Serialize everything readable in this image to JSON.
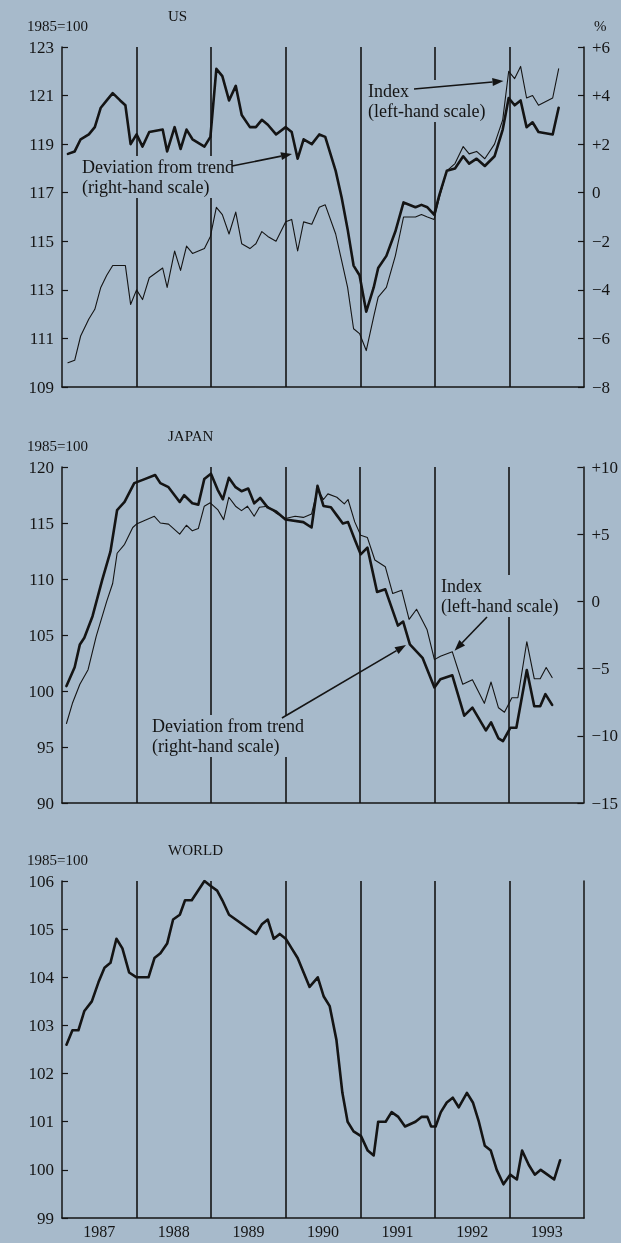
{
  "chart_data": [
    {
      "type": "line",
      "title": "US",
      "ylabel": "1985=100",
      "y2label": "%",
      "xlim": [
        1987,
        1994
      ],
      "tick_labels": "y",
      "ylim": [
        109,
        123
      ],
      "yticks": [
        109,
        111,
        113,
        115,
        117,
        119,
        121,
        123
      ],
      "y2lim": [
        -8,
        6
      ],
      "y2ticks": [
        {
          "value": -8,
          "label": "−8"
        },
        {
          "value": -6,
          "label": "−6"
        },
        {
          "value": -4,
          "label": "−4"
        },
        {
          "value": -2,
          "label": "−2"
        },
        0,
        {
          "value": 2,
          "label": "+2"
        },
        {
          "value": 4,
          "label": "+4"
        },
        {
          "value": 6,
          "label": "+6"
        }
      ],
      "x": [
        1987.08,
        1987.17,
        1987.25,
        1987.36,
        1987.44,
        1987.52,
        1987.6,
        1987.68,
        1987.78,
        1987.85,
        1987.92,
        1988.0,
        1988.08,
        1988.17,
        1988.35,
        1988.41,
        1988.51,
        1988.59,
        1988.67,
        1988.75,
        1988.91,
        1988.99,
        1989.07,
        1989.15,
        1989.24,
        1989.33,
        1989.41,
        1989.52,
        1989.6,
        1989.68,
        1989.76,
        1989.87,
        1990.0,
        1990.08,
        1990.16,
        1990.24,
        1990.35,
        1990.45,
        1990.53,
        1990.67,
        1990.75,
        1990.83,
        1990.91,
        1990.99,
        1991.08,
        1991.18,
        1991.24,
        1991.35,
        1991.47,
        1991.58,
        1991.74,
        1991.82,
        1991.9,
        1991.99,
        1992.06,
        1992.16,
        1992.27,
        1992.38,
        1992.46,
        1992.56,
        1992.67,
        1992.8,
        1992.91,
        1992.99,
        1993.07,
        1993.15,
        1993.23,
        1993.31,
        1993.39,
        1993.58,
        1993.66
      ],
      "series": [
        {
          "color": "#141414",
          "values": [
            110.0,
            110.1,
            111.1,
            111.8,
            112.2,
            113.1,
            113.6,
            114.0,
            114.0,
            114.0,
            112.4,
            113.0,
            112.6,
            113.5,
            113.9,
            113.1,
            114.6,
            113.8,
            114.8,
            114.5,
            114.7,
            115.2,
            116.4,
            116.1,
            115.3,
            116.2,
            114.9,
            114.7,
            114.9,
            115.4,
            115.2,
            115.0,
            115.8,
            115.9,
            114.6,
            115.8,
            115.7,
            116.4,
            116.5,
            115.3,
            114.2,
            113.1,
            111.4,
            111.2,
            110.5,
            111.9,
            112.7,
            113.1,
            114.4,
            116.0,
            116.0,
            116.1,
            116.0,
            115.9,
            116.8,
            117.9,
            118.2,
            118.9,
            118.6,
            118.7,
            118.4,
            119.0,
            120.0,
            122.0,
            121.7,
            122.2,
            120.9,
            121.0,
            120.6,
            120.9,
            122.1
          ]
        },
        {
          "color": "#141414",
          "axis": "y2",
          "values": [
            1.6,
            1.7,
            2.2,
            2.4,
            2.7,
            3.5,
            3.8,
            4.1,
            3.8,
            3.6,
            2.0,
            2.4,
            1.9,
            2.5,
            2.6,
            1.7,
            2.7,
            1.8,
            2.6,
            2.2,
            1.9,
            2.3,
            5.1,
            4.8,
            3.8,
            4.4,
            3.2,
            2.7,
            2.7,
            3.0,
            2.8,
            2.4,
            2.7,
            2.5,
            1.4,
            2.2,
            2.0,
            2.4,
            2.3,
            0.9,
            -0.2,
            -1.5,
            -3.0,
            -3.4,
            -4.9,
            -3.9,
            -3.1,
            -2.6,
            -1.6,
            -0.4,
            -0.6,
            -0.5,
            -0.6,
            -0.9,
            -0.1,
            0.9,
            1.0,
            1.5,
            1.2,
            1.4,
            1.1,
            1.5,
            2.6,
            3.9,
            3.6,
            3.8,
            2.7,
            2.9,
            2.5,
            2.4,
            3.5
          ]
        }
      ],
      "ref_lines": [
        {
          "axis": "x",
          "value": 1988
        },
        {
          "axis": "x",
          "value": 1989
        },
        {
          "axis": "x",
          "value": 1990
        },
        {
          "axis": "x",
          "value": 1991
        },
        {
          "axis": "x",
          "value": 1992
        },
        {
          "axis": "x",
          "value": 1993
        }
      ],
      "annotations": [
        {
          "text": "Index\n(left-hand scale)",
          "x": 1992.92,
          "y": 121.6
        },
        "Deviation from trend\n(right-hand scale)"
      ]
    },
    {
      "type": "line",
      "title": "JAPAN",
      "ylabel": "1985=100",
      "xlim": [
        1987,
        1994
      ],
      "tick_labels": "y",
      "ylim": [
        90,
        120
      ],
      "yticks": [
        90,
        95,
        100,
        105,
        110,
        115,
        120
      ],
      "y2lim": [
        -15,
        10
      ],
      "y2ticks": [
        {
          "value": -15,
          "label": "−15"
        },
        {
          "value": -10,
          "label": "−10"
        },
        {
          "value": -5,
          "label": "−5"
        },
        0,
        {
          "value": 5,
          "label": "+5"
        },
        {
          "value": 10,
          "label": "+10"
        }
      ],
      "series": [
        {
          "color": "#141414",
          "x": [
            1987.06,
            1987.14,
            1987.24,
            1987.35,
            1987.46,
            1987.6,
            1987.68,
            1987.74,
            1987.84,
            1987.95,
            1988.0,
            1988.24,
            1988.32,
            1988.43,
            1988.58,
            1988.67,
            1988.75,
            1988.83,
            1988.91,
            1988.99,
            1989.09,
            1989.17,
            1989.24,
            1989.33,
            1989.41,
            1989.49,
            1989.58,
            1989.65,
            1989.76,
            1989.87,
            1990.0,
            1990.13,
            1990.24,
            1990.35,
            1990.43,
            1990.51,
            1990.57,
            1990.69,
            1990.79,
            1990.84,
            1990.93,
            1991.01,
            1991.1,
            1991.2,
            1991.34,
            1991.44,
            1991.56,
            1991.66,
            1991.76,
            1991.9,
            1992.0,
            1992.08,
            1992.24,
            1992.38,
            1992.51,
            1992.67,
            1992.76,
            1992.86,
            1992.94,
            1993.04,
            1993.12,
            1993.24,
            1993.34,
            1993.42,
            1993.5,
            1993.58
          ],
          "values": [
            97.1,
            98.9,
            100.6,
            101.9,
            104.9,
            108.0,
            109.6,
            112.3,
            113.1,
            114.6,
            114.9,
            115.6,
            115.0,
            114.9,
            114.0,
            114.8,
            114.3,
            114.5,
            116.5,
            116.8,
            116.2,
            115.3,
            117.3,
            116.5,
            116.1,
            116.5,
            115.6,
            116.4,
            116.5,
            115.9,
            115.4,
            115.6,
            115.5,
            115.8,
            118.0,
            117.1,
            117.6,
            117.3,
            116.7,
            117.1,
            115.1,
            113.9,
            113.7,
            111.7,
            111.1,
            108.7,
            109.0,
            106.4,
            107.3,
            105.5,
            102.8,
            103.1,
            103.5,
            100.6,
            101.0,
            98.9,
            100.8,
            98.5,
            98.1,
            99.4,
            99.4,
            104.4,
            101.1,
            101.1,
            102.1,
            101.2
          ]
        },
        {
          "color": "#141414",
          "axis": "y2",
          "x": [
            1987.06,
            1987.17,
            1987.24,
            1987.3,
            1987.41,
            1987.54,
            1987.65,
            1987.74,
            1987.84,
            1987.97,
            1988.11,
            1988.25,
            1988.32,
            1988.43,
            1988.58,
            1988.64,
            1988.75,
            1988.83,
            1988.91,
            1989.0,
            1989.09,
            1989.16,
            1989.24,
            1989.33,
            1989.41,
            1989.5,
            1989.58,
            1989.66,
            1989.76,
            1989.87,
            1990.0,
            1990.24,
            1990.35,
            1990.43,
            1990.51,
            1990.61,
            1990.69,
            1990.77,
            1990.84,
            1990.93,
            1991.01,
            1991.1,
            1991.23,
            1991.34,
            1991.51,
            1991.58,
            1991.67,
            1991.84,
            1992.0,
            1992.08,
            1992.24,
            1992.4,
            1992.51,
            1992.69,
            1992.76,
            1992.86,
            1992.92,
            1993.02,
            1993.1,
            1993.24,
            1993.34,
            1993.42,
            1993.49,
            1993.58
          ],
          "values": [
            -6.3,
            -4.9,
            -3.2,
            -2.7,
            -1.1,
            1.6,
            3.7,
            6.8,
            7.4,
            8.8,
            9.1,
            9.4,
            8.8,
            8.5,
            7.4,
            7.9,
            7.3,
            7.2,
            9.1,
            9.5,
            8.3,
            7.6,
            9.2,
            8.5,
            8.2,
            8.4,
            7.3,
            7.7,
            7.0,
            6.7,
            6.1,
            5.9,
            5.5,
            8.6,
            7.1,
            7.0,
            6.4,
            5.8,
            5.9,
            4.6,
            3.5,
            4.0,
            0.7,
            0.9,
            -1.8,
            -1.5,
            -3.2,
            -4.2,
            -6.4,
            -5.8,
            -5.5,
            -8.5,
            -7.9,
            -9.6,
            -9.0,
            -10.2,
            -10.4,
            -9.4,
            -9.4,
            -5.1,
            -7.8,
            -7.8,
            -6.9,
            -7.7
          ]
        }
      ],
      "ref_lines": [
        {
          "axis": "x",
          "value": 1988
        },
        {
          "axis": "x",
          "value": 1989
        },
        {
          "axis": "x",
          "value": 1990
        },
        {
          "axis": "x",
          "value": 1991
        },
        {
          "axis": "x",
          "value": 1992
        },
        {
          "axis": "x",
          "value": 1993
        }
      ],
      "annotations": [
        {
          "text": "Index\n(left-hand scale)",
          "x": 1992.27,
          "y": 103.6
        },
        "Deviation from trend\n(right-hand scale)"
      ]
    },
    {
      "type": "line",
      "title": "WORLD",
      "ylabel": "1985=100",
      "xlim": [
        1987,
        1994
      ],
      "xticks": [
        {
          "value": 1987.5,
          "label": "1987"
        },
        {
          "value": 1988.5,
          "label": "1988"
        },
        {
          "value": 1989.5,
          "label": "1989"
        },
        {
          "value": 1990.5,
          "label": "1990"
        },
        {
          "value": 1991.5,
          "label": "1991"
        },
        {
          "value": 1992.5,
          "label": "1992"
        },
        {
          "value": 1993.5,
          "label": "1993"
        }
      ],
      "ylim": [
        99,
        106
      ],
      "yticks": [
        99,
        100,
        101,
        102,
        103,
        104,
        105,
        106
      ],
      "x": [
        1987.06,
        1987.14,
        1987.22,
        1987.3,
        1987.4,
        1987.49,
        1987.57,
        1987.65,
        1987.73,
        1987.81,
        1987.9,
        1988.0,
        1988.16,
        1988.24,
        1988.32,
        1988.41,
        1988.49,
        1988.58,
        1988.65,
        1988.74,
        1988.91,
        1988.99,
        1989.08,
        1989.15,
        1989.24,
        1989.33,
        1989.6,
        1989.68,
        1989.76,
        1989.84,
        1989.92,
        1990.0,
        1990.08,
        1990.16,
        1990.24,
        1990.32,
        1990.43,
        1990.51,
        1990.59,
        1990.68,
        1990.76,
        1990.83,
        1990.91,
        1991.01,
        1991.1,
        1991.18,
        1991.24,
        1991.34,
        1991.42,
        1991.51,
        1991.6,
        1991.74,
        1991.82,
        1991.9,
        1991.95,
        1992.01,
        1992.08,
        1992.16,
        1992.24,
        1992.32,
        1992.43,
        1992.51,
        1992.59,
        1992.67,
        1992.75,
        1992.83,
        1992.92,
        1993.01,
        1993.1,
        1993.17,
        1993.26,
        1993.34,
        1993.42,
        1993.51,
        1993.6,
        1993.68
      ],
      "series": [
        {
          "color": "#141414",
          "values": [
            102.6,
            102.9,
            102.9,
            103.3,
            103.5,
            103.9,
            104.2,
            104.3,
            104.8,
            104.6,
            104.1,
            104.0,
            104.0,
            104.4,
            104.5,
            104.7,
            105.2,
            105.3,
            105.6,
            105.6,
            106.0,
            105.9,
            105.8,
            105.6,
            105.3,
            105.2,
            104.9,
            105.1,
            105.2,
            104.8,
            104.9,
            104.8,
            104.6,
            104.4,
            104.1,
            103.8,
            104.0,
            103.6,
            103.4,
            102.7,
            101.6,
            101.0,
            100.8,
            100.7,
            100.4,
            100.3,
            101.0,
            101.0,
            101.2,
            101.1,
            100.9,
            101.0,
            101.1,
            101.1,
            100.9,
            100.9,
            101.2,
            101.4,
            101.5,
            101.3,
            101.6,
            101.4,
            101.0,
            100.5,
            100.4,
            100.0,
            99.7,
            99.9,
            99.8,
            100.4,
            100.1,
            99.9,
            100.0,
            99.9,
            99.8,
            100.2
          ]
        }
      ],
      "ref_lines": [
        {
          "axis": "x",
          "value": 1988
        },
        {
          "axis": "x",
          "value": 1989
        },
        {
          "axis": "x",
          "value": 1990
        },
        {
          "axis": "x",
          "value": 1991
        },
        {
          "axis": "x",
          "value": 1992
        },
        {
          "axis": "x",
          "value": 1993
        }
      ]
    }
  ]
}
